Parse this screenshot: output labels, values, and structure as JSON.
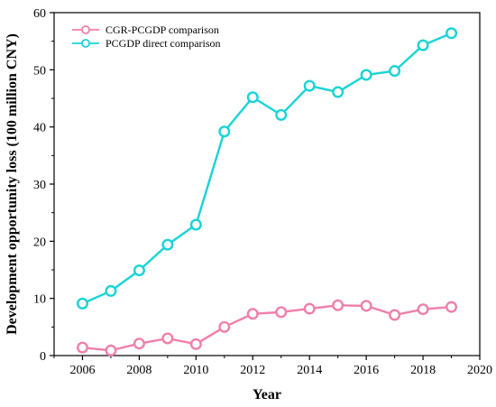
{
  "chart_data": {
    "type": "line",
    "title": "",
    "xlabel": "Year",
    "ylabel": "Development opportunity loss (100 million CNY)",
    "xlim": [
      2005,
      2020
    ],
    "ylim": [
      0,
      60
    ],
    "xticks": [
      2006,
      2008,
      2010,
      2012,
      2014,
      2016,
      2018,
      2020
    ],
    "yticks": [
      0,
      10,
      20,
      30,
      40,
      50,
      60
    ],
    "grid": false,
    "legend_position": "top-left",
    "x": [
      2006,
      2007,
      2008,
      2009,
      2010,
      2011,
      2012,
      2013,
      2014,
      2015,
      2016,
      2017,
      2018,
      2019
    ],
    "series": [
      {
        "name": "CGR-PCGDP comparison",
        "color": "#f07eab",
        "values": [
          1.4,
          0.9,
          2.1,
          3.0,
          2.0,
          5.0,
          7.3,
          7.6,
          8.2,
          8.8,
          8.7,
          7.1,
          8.1,
          8.5
        ]
      },
      {
        "name": "PCGDP direct comparison",
        "color": "#19d3d6",
        "values": [
          9.1,
          11.3,
          14.9,
          19.4,
          22.9,
          39.2,
          45.2,
          42.1,
          47.2,
          46.1,
          49.1,
          49.8,
          54.3,
          56.4
        ]
      }
    ]
  }
}
